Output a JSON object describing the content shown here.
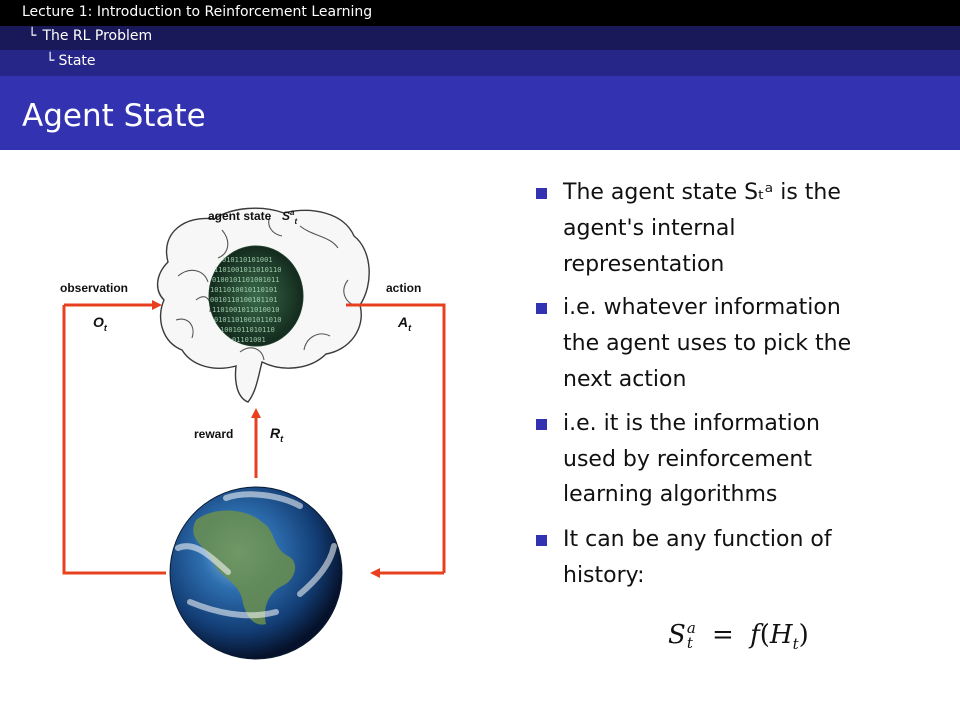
{
  "header": {
    "lecture": "Lecture 1: Introduction to Reinforcement Learning",
    "section": "The RL Problem",
    "subsection": "State",
    "nav_prefix": "└",
    "sub_prefix": "└"
  },
  "slide": {
    "title": "Agent State"
  },
  "diagram": {
    "agent_label": "agent state",
    "agent_symbol": "S",
    "agent_symbol_sup": "a",
    "agent_symbol_sub": "t",
    "observation_label": "observation",
    "observation_symbol": "O",
    "observation_sub": "t",
    "action_label": "action",
    "action_symbol": "A",
    "action_sub": "t",
    "reward_label": "reward",
    "reward_symbol": "R",
    "reward_sub": "t",
    "arrow_color": "#e8401f"
  },
  "bullets": [
    {
      "lines": [
        "The agent state Sₜᵃ is the",
        "agent's internal",
        "representation"
      ]
    },
    {
      "lines": [
        "i.e. whatever information",
        "the agent uses to pick the",
        "next action"
      ]
    },
    {
      "lines": [
        "i.e. it is the information",
        "used by reinforcement",
        "learning algorithms"
      ]
    },
    {
      "lines": [
        "It can be any function of",
        "history:"
      ]
    }
  ],
  "formula": {
    "lhs": "S",
    "lhs_sup": "a",
    "lhs_sub": "t",
    "equals": "=",
    "fn": "f",
    "arg": "H",
    "arg_sub": "t"
  },
  "colors": {
    "header_black": "#000000",
    "header_dark": "#191959",
    "header_mid": "#262688",
    "title_bar": "#3333b2"
  }
}
